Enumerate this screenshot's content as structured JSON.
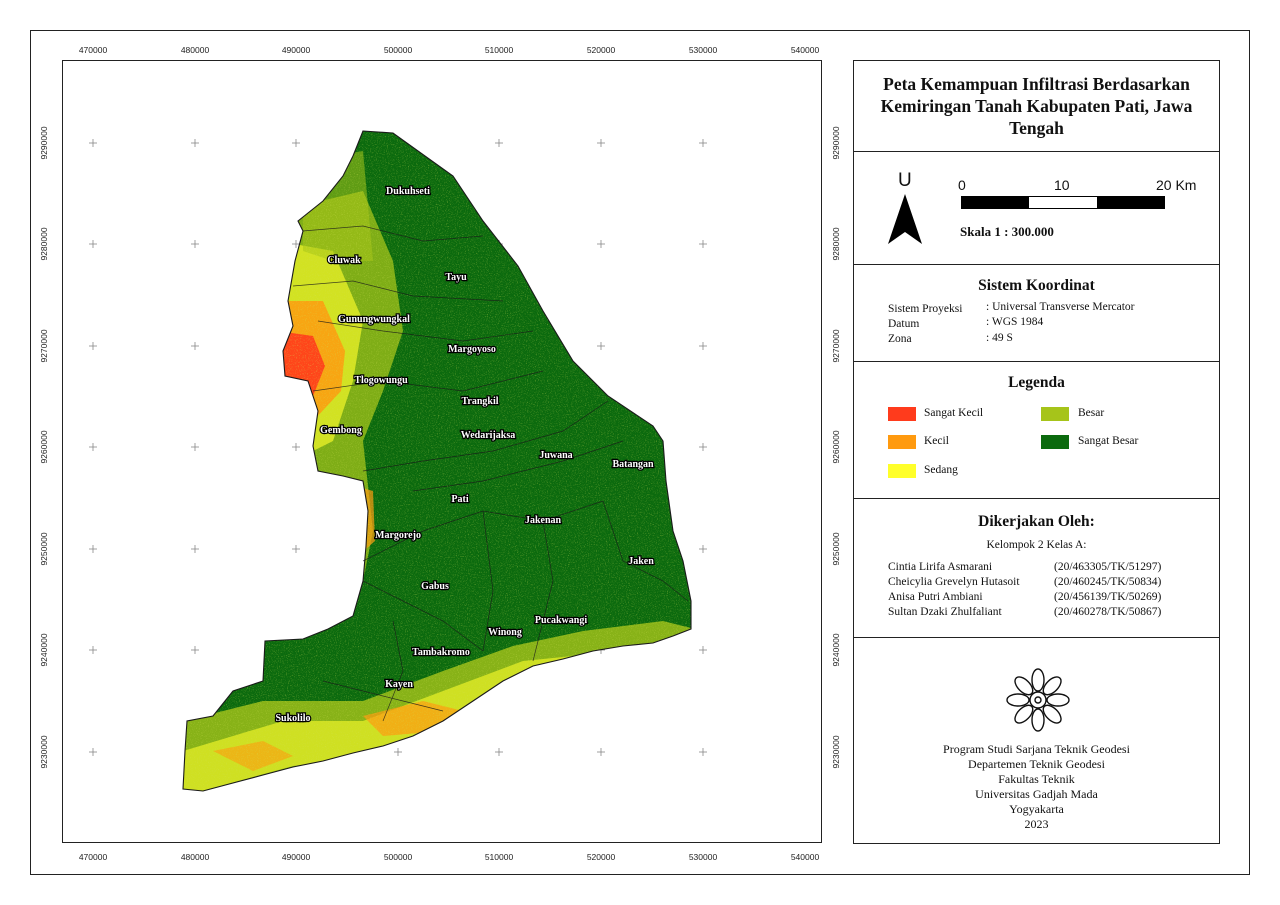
{
  "map": {
    "x_ticks": [
      "470000",
      "480000",
      "490000",
      "500000",
      "510000",
      "520000",
      "530000",
      "540000"
    ],
    "y_ticks": [
      "9290000",
      "9280000",
      "9270000",
      "9260000",
      "9250000",
      "9240000",
      "9230000"
    ],
    "places": [
      "Dukuhseti",
      "Cluwak",
      "Tayu",
      "Gunungwungkal",
      "Margoyoso",
      "Tlogowungu",
      "Trangkil",
      "Gembong",
      "Wedarijaksa",
      "Juwana",
      "Batangan",
      "Pati",
      "Jakenan",
      "Margorejo",
      "Jaken",
      "Gabus",
      "Winong",
      "Pucakwangi",
      "Tambakromo",
      "Kayen",
      "Sukolilo"
    ]
  },
  "title": "Peta Kemampuan Infiltrasi Berdasarkan Kemiringan Tanah Kabupaten Pati, Jawa Tengah",
  "north_label": "U",
  "scale": {
    "labels": [
      "0",
      "10",
      "20 Km"
    ],
    "text": "Skala 1 : 300.000"
  },
  "coord": {
    "heading": "Sistem Koordinat",
    "rows": [
      {
        "key": "Sistem Proyeksi",
        "value": ": Universal Transverse Mercator"
      },
      {
        "key": "Datum",
        "value": ": WGS 1984"
      },
      {
        "key": "Zona",
        "value": ": 49 S"
      }
    ]
  },
  "legend": {
    "heading": "Legenda",
    "items": [
      {
        "label": "Sangat Kecil",
        "color": "#ff3b1c"
      },
      {
        "label": "Kecil",
        "color": "#ff9a0f"
      },
      {
        "label": "Sedang",
        "color": "#ffff2a"
      },
      {
        "label": "Besar",
        "color": "#a6c41a"
      },
      {
        "label": "Sangat Besar",
        "color": "#0b6a0e"
      }
    ]
  },
  "credits": {
    "heading": "Dikerjakan Oleh:",
    "group": "Kelompok 2 Kelas A:",
    "members": [
      {
        "name": "Cintia Lirifa Asmarani",
        "nim": "(20/463305/TK/51297)"
      },
      {
        "name": "Cheicylia Grevelyn Hutasoit",
        "nim": "(20/460245/TK/50834)"
      },
      {
        "name": "Anisa Putri Ambiani",
        "nim": "(20/456139/TK/50269)"
      },
      {
        "name": "Sultan Dzaki Zhulfaliant",
        "nim": "(20/460278/TK/50867)"
      }
    ]
  },
  "institution": {
    "lines": [
      "Program Studi Sarjana Teknik Geodesi",
      "Departemen Teknik Geodesi",
      "Fakultas Teknik",
      "Universitas Gadjah Mada",
      "Yogyakarta",
      "2023"
    ]
  }
}
